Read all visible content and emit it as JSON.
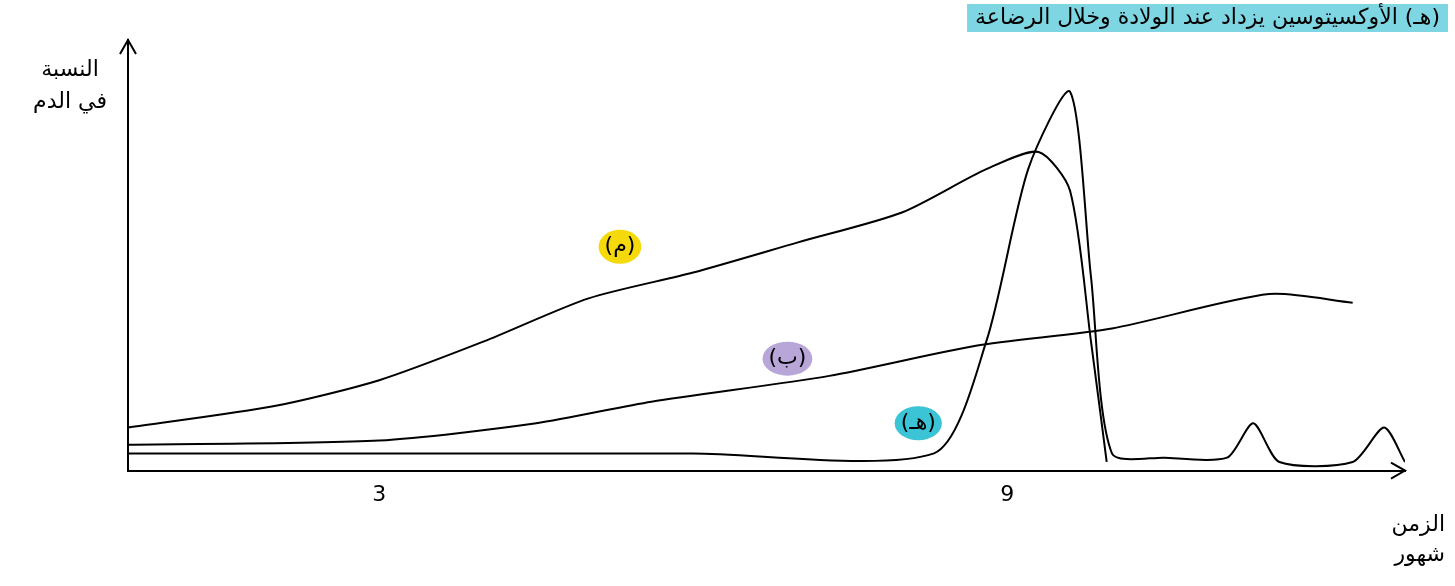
{
  "chart_data": {
    "type": "line",
    "annotation": "(هـ) الأوكسيتوسين يزداد عند الولادة وخلال الرضاعة",
    "y_label": "النسبة في الدم",
    "x_label": "الزمن شهور",
    "xlim": [
      0.6,
      12.8
    ],
    "xticks": [
      3,
      9
    ],
    "ylim": [
      0,
      100
    ],
    "tick_labels": "x",
    "grid": false,
    "series": [
      {
        "name": "(م)",
        "color": "#000000",
        "x": [
          0.6,
          2,
          3,
          4,
          5,
          6,
          7,
          8,
          8.8,
          9.3,
          9.6,
          9.8,
          9.95
        ],
        "values": [
          10,
          15,
          21,
          30,
          40,
          46,
          53,
          60,
          70,
          74,
          65,
          30,
          2
        ]
      },
      {
        "name": "(ب)",
        "color": "#000000",
        "x": [
          0.6,
          3,
          4.5,
          5.6,
          7.3,
          8.7,
          10,
          11.5,
          12.3
        ],
        "values": [
          6,
          7,
          11,
          16,
          22,
          29,
          33,
          41,
          39
        ]
      },
      {
        "name": "(هـ)",
        "color": "#000000",
        "x": [
          0.6,
          3,
          6,
          8.3,
          8.8,
          9.2,
          9.6,
          9.8,
          10,
          10.5,
          11.1,
          11.35,
          11.6,
          12.3,
          12.6,
          12.8
        ],
        "values": [
          4,
          4,
          4,
          4,
          30,
          70,
          88,
          45,
          4,
          3,
          3,
          11,
          2,
          2,
          10,
          2
        ]
      }
    ]
  }
}
